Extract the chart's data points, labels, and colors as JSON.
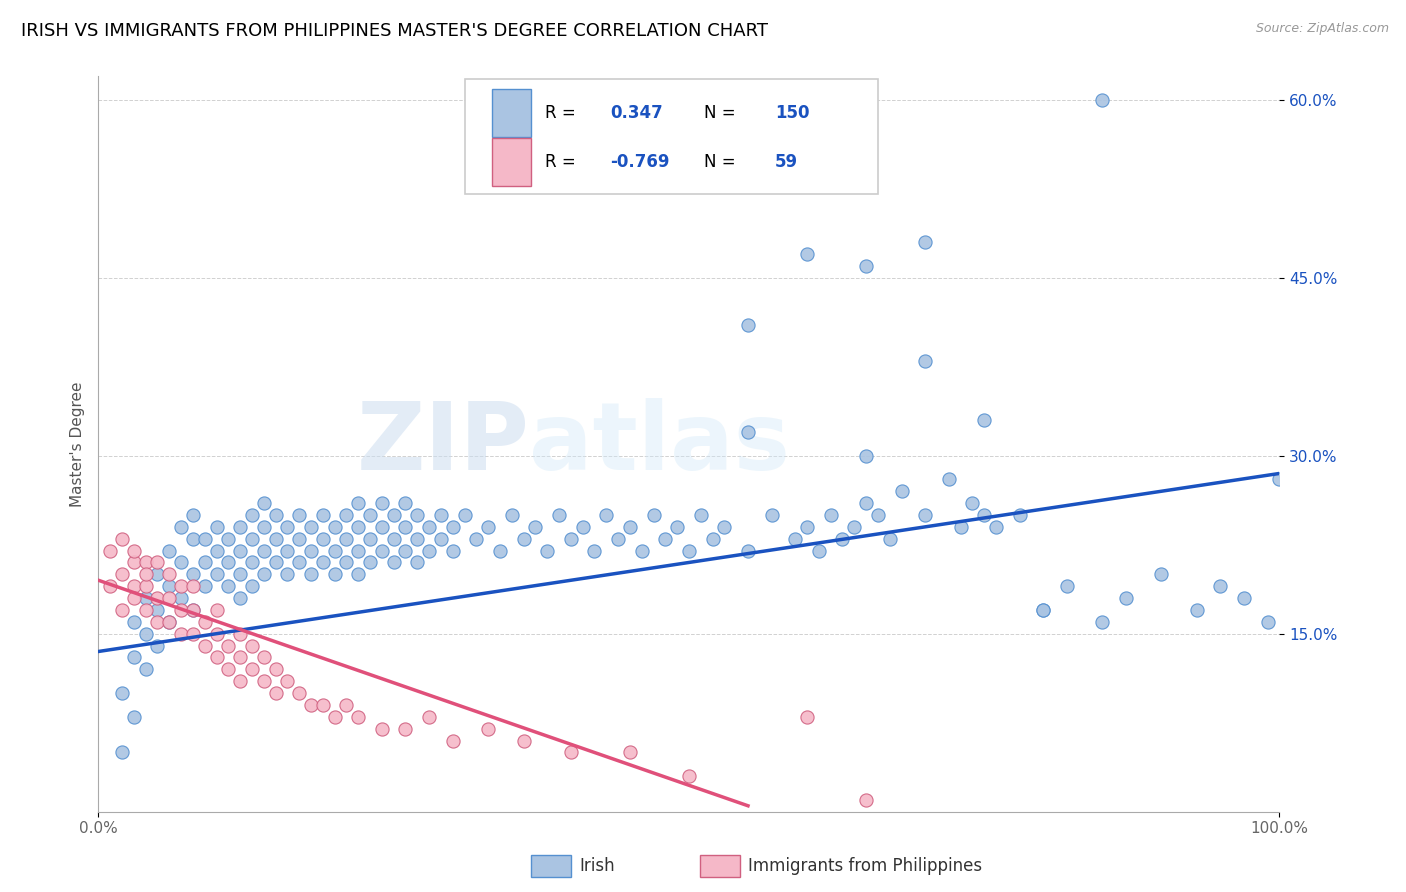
{
  "title": "IRISH VS IMMIGRANTS FROM PHILIPPINES MASTER'S DEGREE CORRELATION CHART",
  "source": "Source: ZipAtlas.com",
  "ylabel": "Master's Degree",
  "watermark_text": "ZIP",
  "watermark_text2": "atlas",
  "blue_R": 0.347,
  "blue_N": 150,
  "pink_R": -0.769,
  "pink_N": 59,
  "blue_color": "#aac4e2",
  "pink_color": "#f5b8c8",
  "blue_line_color": "#1a52c0",
  "pink_line_color": "#e0507a",
  "blue_edge_color": "#5590d0",
  "pink_edge_color": "#d06080",
  "xlim": [
    0.0,
    1.0
  ],
  "ylim": [
    0.0,
    0.62
  ],
  "ytick_positions": [
    0.15,
    0.3,
    0.45,
    0.6
  ],
  "ytick_labels": [
    "15.0%",
    "30.0%",
    "45.0%",
    "60.0%"
  ],
  "blue_line_x0": 0.0,
  "blue_line_y0": 0.135,
  "blue_line_x1": 1.0,
  "blue_line_y1": 0.285,
  "pink_line_x0": 0.0,
  "pink_line_y0": 0.195,
  "pink_line_x1": 0.55,
  "pink_line_y1": 0.005,
  "legend_labels": [
    "Irish",
    "Immigrants from Philippines"
  ],
  "title_fontsize": 13,
  "label_fontsize": 11,
  "tick_fontsize": 11,
  "legend_fontsize": 12,
  "source_fontsize": 9,
  "blue_scatter_x": [
    0.02,
    0.02,
    0.03,
    0.03,
    0.03,
    0.04,
    0.04,
    0.04,
    0.05,
    0.05,
    0.05,
    0.06,
    0.06,
    0.06,
    0.07,
    0.07,
    0.07,
    0.08,
    0.08,
    0.08,
    0.08,
    0.09,
    0.09,
    0.09,
    0.1,
    0.1,
    0.1,
    0.11,
    0.11,
    0.11,
    0.12,
    0.12,
    0.12,
    0.12,
    0.13,
    0.13,
    0.13,
    0.13,
    0.14,
    0.14,
    0.14,
    0.14,
    0.15,
    0.15,
    0.15,
    0.16,
    0.16,
    0.16,
    0.17,
    0.17,
    0.17,
    0.18,
    0.18,
    0.18,
    0.19,
    0.19,
    0.19,
    0.2,
    0.2,
    0.2,
    0.21,
    0.21,
    0.21,
    0.22,
    0.22,
    0.22,
    0.22,
    0.23,
    0.23,
    0.23,
    0.24,
    0.24,
    0.24,
    0.25,
    0.25,
    0.25,
    0.26,
    0.26,
    0.26,
    0.27,
    0.27,
    0.27,
    0.28,
    0.28,
    0.29,
    0.29,
    0.3,
    0.3,
    0.31,
    0.32,
    0.33,
    0.34,
    0.35,
    0.36,
    0.37,
    0.38,
    0.39,
    0.4,
    0.41,
    0.42,
    0.43,
    0.44,
    0.45,
    0.46,
    0.47,
    0.48,
    0.49,
    0.5,
    0.51,
    0.52,
    0.53,
    0.55,
    0.57,
    0.59,
    0.6,
    0.61,
    0.62,
    0.63,
    0.64,
    0.65,
    0.66,
    0.67,
    0.68,
    0.7,
    0.72,
    0.73,
    0.74,
    0.75,
    0.76,
    0.78,
    0.8,
    0.82,
    0.85,
    0.87,
    0.9,
    0.93,
    0.95,
    0.97,
    0.99,
    1.0,
    0.55,
    0.6,
    0.65,
    0.7,
    0.55,
    0.65,
    0.7,
    0.75,
    0.8,
    0.85
  ],
  "blue_scatter_y": [
    0.05,
    0.1,
    0.13,
    0.16,
    0.08,
    0.15,
    0.18,
    0.12,
    0.17,
    0.2,
    0.14,
    0.19,
    0.22,
    0.16,
    0.21,
    0.18,
    0.24,
    0.2,
    0.23,
    0.17,
    0.25,
    0.21,
    0.19,
    0.23,
    0.22,
    0.2,
    0.24,
    0.21,
    0.23,
    0.19,
    0.22,
    0.2,
    0.24,
    0.18,
    0.23,
    0.21,
    0.25,
    0.19,
    0.22,
    0.24,
    0.2,
    0.26,
    0.23,
    0.21,
    0.25,
    0.22,
    0.24,
    0.2,
    0.23,
    0.21,
    0.25,
    0.22,
    0.24,
    0.2,
    0.23,
    0.21,
    0.25,
    0.22,
    0.24,
    0.2,
    0.23,
    0.25,
    0.21,
    0.24,
    0.22,
    0.26,
    0.2,
    0.23,
    0.25,
    0.21,
    0.24,
    0.22,
    0.26,
    0.23,
    0.25,
    0.21,
    0.24,
    0.22,
    0.26,
    0.23,
    0.25,
    0.21,
    0.24,
    0.22,
    0.25,
    0.23,
    0.24,
    0.22,
    0.25,
    0.23,
    0.24,
    0.22,
    0.25,
    0.23,
    0.24,
    0.22,
    0.25,
    0.23,
    0.24,
    0.22,
    0.25,
    0.23,
    0.24,
    0.22,
    0.25,
    0.23,
    0.24,
    0.22,
    0.25,
    0.23,
    0.24,
    0.22,
    0.25,
    0.23,
    0.24,
    0.22,
    0.25,
    0.23,
    0.24,
    0.26,
    0.25,
    0.23,
    0.27,
    0.25,
    0.28,
    0.24,
    0.26,
    0.25,
    0.24,
    0.25,
    0.17,
    0.19,
    0.16,
    0.18,
    0.2,
    0.17,
    0.19,
    0.18,
    0.16,
    0.28,
    0.41,
    0.47,
    0.46,
    0.48,
    0.32,
    0.3,
    0.38,
    0.33,
    0.17,
    0.6
  ],
  "pink_scatter_x": [
    0.01,
    0.01,
    0.02,
    0.02,
    0.02,
    0.03,
    0.03,
    0.03,
    0.03,
    0.04,
    0.04,
    0.04,
    0.04,
    0.05,
    0.05,
    0.05,
    0.06,
    0.06,
    0.06,
    0.07,
    0.07,
    0.07,
    0.08,
    0.08,
    0.08,
    0.09,
    0.09,
    0.1,
    0.1,
    0.1,
    0.11,
    0.11,
    0.12,
    0.12,
    0.12,
    0.13,
    0.13,
    0.14,
    0.14,
    0.15,
    0.15,
    0.16,
    0.17,
    0.18,
    0.19,
    0.2,
    0.21,
    0.22,
    0.24,
    0.26,
    0.28,
    0.3,
    0.33,
    0.36,
    0.4,
    0.45,
    0.5,
    0.6,
    0.65
  ],
  "pink_scatter_y": [
    0.19,
    0.22,
    0.2,
    0.17,
    0.23,
    0.19,
    0.21,
    0.18,
    0.22,
    0.19,
    0.21,
    0.17,
    0.2,
    0.18,
    0.21,
    0.16,
    0.18,
    0.2,
    0.16,
    0.17,
    0.19,
    0.15,
    0.17,
    0.19,
    0.15,
    0.16,
    0.14,
    0.15,
    0.17,
    0.13,
    0.14,
    0.12,
    0.13,
    0.15,
    0.11,
    0.12,
    0.14,
    0.11,
    0.13,
    0.1,
    0.12,
    0.11,
    0.1,
    0.09,
    0.09,
    0.08,
    0.09,
    0.08,
    0.07,
    0.07,
    0.08,
    0.06,
    0.07,
    0.06,
    0.05,
    0.05,
    0.03,
    0.08,
    0.01
  ]
}
